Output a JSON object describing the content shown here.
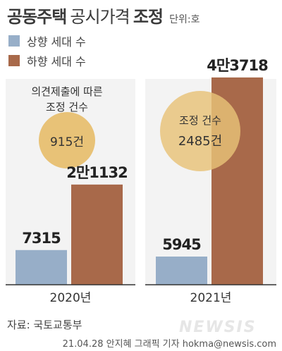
{
  "header": {
    "title_bold": "공동주택",
    "title_light": "공시가격",
    "title_bold2": "조정",
    "unit": "단위:호"
  },
  "legend": [
    {
      "label": "상향 세대 수",
      "color": "#97aec8"
    },
    {
      "label": "하향 세대 수",
      "color": "#a8694a"
    }
  ],
  "annotations": {
    "left_caption_line1": "의견제출에 따른",
    "left_caption_line2": "조정 건수",
    "left_value": "915건",
    "right_caption": "조정 건수",
    "right_value": "2485건",
    "circle_color": "#e8c277"
  },
  "footer": {
    "source": "자료: 국토교통부",
    "credit": "21.04.28 안지혜 그래픽 기자 hokma@newsis.com",
    "watermark": "NEWSIS"
  },
  "chart_data": {
    "type": "bar",
    "categories": [
      "2020년",
      "2021년"
    ],
    "series": [
      {
        "name": "상향 세대 수",
        "values": [
          7315,
          5945
        ],
        "labels": [
          "7315",
          "5945"
        ],
        "color": "#97aec8"
      },
      {
        "name": "하향 세대 수",
        "values": [
          21132,
          43718
        ],
        "labels": [
          "2만1132",
          "4만3718"
        ],
        "color": "#a8694a"
      }
    ],
    "adjustments": [
      915,
      2485
    ]
  }
}
